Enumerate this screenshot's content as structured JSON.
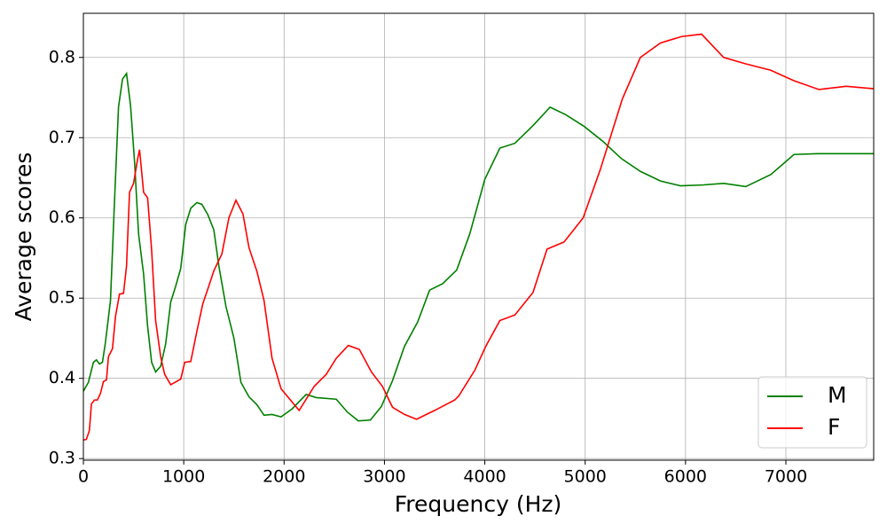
{
  "chart_data": {
    "type": "line",
    "xlabel": "Frequency (Hz)",
    "ylabel": "Average scores",
    "xlim": [
      0,
      7875
    ],
    "ylim": [
      0.298,
      0.855
    ],
    "xticks": [
      0,
      1000,
      2000,
      3000,
      4000,
      5000,
      6000,
      7000
    ],
    "yticks": [
      0.3,
      0.4,
      0.5,
      0.6,
      0.7,
      0.8
    ],
    "grid": true,
    "legend": "lower right",
    "series": [
      {
        "name": "M",
        "color": "#008000",
        "x": [
          0,
          50,
          100,
          130,
          160,
          190,
          220,
          270,
          310,
          350,
          390,
          430,
          470,
          510,
          550,
          600,
          640,
          680,
          720,
          770,
          820,
          870,
          920,
          970,
          1020,
          1070,
          1130,
          1180,
          1240,
          1300,
          1350,
          1420,
          1500,
          1570,
          1650,
          1730,
          1800,
          1880,
          1970,
          2080,
          2220,
          2320,
          2520,
          2630,
          2740,
          2860,
          2970,
          3080,
          3200,
          3330,
          3450,
          3580,
          3720,
          3850,
          4000,
          4150,
          4300,
          4480,
          4650,
          4800,
          4990,
          5180,
          5360,
          5550,
          5750,
          5950,
          6170,
          6380,
          6600,
          6850,
          7080,
          7320,
          7600,
          7875
        ],
        "values": [
          0.384,
          0.395,
          0.42,
          0.423,
          0.418,
          0.42,
          0.445,
          0.497,
          0.62,
          0.738,
          0.773,
          0.78,
          0.74,
          0.67,
          0.58,
          0.53,
          0.465,
          0.42,
          0.408,
          0.415,
          0.443,
          0.495,
          0.515,
          0.537,
          0.592,
          0.612,
          0.619,
          0.617,
          0.604,
          0.585,
          0.54,
          0.49,
          0.45,
          0.395,
          0.377,
          0.367,
          0.354,
          0.355,
          0.352,
          0.362,
          0.38,
          0.376,
          0.374,
          0.358,
          0.347,
          0.348,
          0.365,
          0.397,
          0.44,
          0.47,
          0.51,
          0.518,
          0.535,
          0.58,
          0.648,
          0.687,
          0.693,
          0.715,
          0.738,
          0.729,
          0.714,
          0.695,
          0.674,
          0.658,
          0.646,
          0.64,
          0.641,
          0.643,
          0.639,
          0.654,
          0.679,
          0.68,
          0.68,
          0.68
        ]
      },
      {
        "name": "F",
        "color": "#ff0000",
        "x": [
          0,
          30,
          60,
          80,
          110,
          140,
          170,
          200,
          230,
          250,
          290,
          320,
          360,
          400,
          430,
          460,
          500,
          540,
          560,
          600,
          640,
          680,
          720,
          770,
          810,
          870,
          970,
          1010,
          1070,
          1130,
          1190,
          1250,
          1300,
          1380,
          1450,
          1520,
          1590,
          1650,
          1730,
          1800,
          1880,
          1970,
          2150,
          2300,
          2420,
          2520,
          2640,
          2750,
          2870,
          2980,
          3080,
          3200,
          3320,
          3500,
          3700,
          3740,
          3900,
          4010,
          4150,
          4300,
          4480,
          4620,
          4790,
          4980,
          5150,
          5370,
          5550,
          5750,
          5960,
          6160,
          6380,
          6600,
          6850,
          7080,
          7330,
          7600,
          7875
        ],
        "values": [
          0.323,
          0.324,
          0.335,
          0.368,
          0.373,
          0.373,
          0.381,
          0.396,
          0.398,
          0.427,
          0.437,
          0.477,
          0.505,
          0.506,
          0.54,
          0.632,
          0.643,
          0.673,
          0.685,
          0.632,
          0.625,
          0.56,
          0.472,
          0.427,
          0.405,
          0.392,
          0.399,
          0.42,
          0.421,
          0.458,
          0.493,
          0.515,
          0.534,
          0.555,
          0.6,
          0.622,
          0.605,
          0.563,
          0.533,
          0.497,
          0.425,
          0.387,
          0.36,
          0.39,
          0.405,
          0.425,
          0.441,
          0.436,
          0.408,
          0.39,
          0.364,
          0.355,
          0.349,
          0.36,
          0.373,
          0.378,
          0.41,
          0.44,
          0.472,
          0.479,
          0.507,
          0.561,
          0.57,
          0.6,
          0.66,
          0.748,
          0.8,
          0.818,
          0.826,
          0.829,
          0.8,
          0.792,
          0.784,
          0.771,
          0.76,
          0.764,
          0.761
        ]
      }
    ]
  }
}
